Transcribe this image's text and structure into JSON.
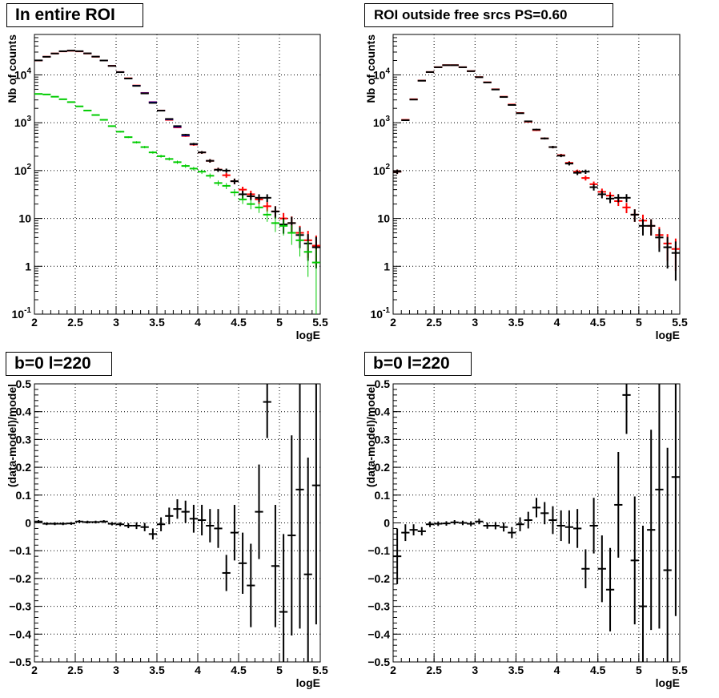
{
  "chart_data": [
    {
      "type": "scatter",
      "panel": "top-left",
      "title": "In entire ROI",
      "xlabel": "logE",
      "ylabel": "Nb of counts",
      "xlim": [
        2,
        5.5
      ],
      "ylim": [
        0.1,
        70000
      ],
      "yscale": "log",
      "grid": true,
      "x_ticks": [
        "2",
        "2.5",
        "3",
        "3.5",
        "4",
        "4.5",
        "5",
        "5.5"
      ],
      "y_ticks": [
        "10^-1",
        "1",
        "10",
        "10^2",
        "10^3",
        "10^4"
      ],
      "series": [
        {
          "color": "#ff0000",
          "x": [
            2.05,
            2.15,
            2.25,
            2.35,
            2.45,
            2.55,
            2.65,
            2.75,
            2.85,
            2.95,
            3.05,
            3.15,
            3.25,
            3.35,
            3.45,
            3.55,
            3.65,
            3.75,
            3.85,
            3.95,
            4.05,
            4.15,
            4.25,
            4.35,
            4.45,
            4.55,
            4.65,
            4.75,
            4.85,
            4.95,
            5.05,
            5.15,
            5.25,
            5.35,
            5.45
          ],
          "y": [
            20000,
            24000,
            28000,
            31000,
            32000,
            31000,
            28000,
            24000,
            20000,
            15500,
            11500,
            8500,
            6000,
            4200,
            2700,
            1800,
            1150,
            800,
            530,
            350,
            240,
            160,
            105,
            80,
            60,
            40,
            32,
            25,
            18,
            14,
            10,
            8,
            5,
            3.5,
            2.7
          ],
          "yerr": [
            140,
            155,
            167,
            176,
            179,
            176,
            167,
            155,
            141,
            124,
            107,
            92,
            77,
            65,
            52,
            42,
            34,
            28,
            23,
            19,
            15,
            13,
            10,
            9,
            8,
            6,
            6,
            5,
            4,
            4,
            3,
            3,
            2,
            2,
            1.7
          ]
        },
        {
          "color": "#0000ff",
          "x": [
            2.05,
            2.15,
            2.25,
            2.35,
            2.45,
            2.55,
            2.65,
            2.75,
            2.85,
            2.95,
            3.05,
            3.15,
            3.25,
            3.35,
            3.45,
            3.55,
            3.65,
            3.75,
            3.85,
            3.95,
            4.05,
            4.15
          ],
          "y": [
            20100,
            24100,
            28100,
            31100,
            32100,
            31100,
            28100,
            24100,
            20100,
            15600,
            11600,
            8550,
            6050,
            4230,
            2720,
            1810,
            1160,
            810,
            535,
            352,
            242,
            161
          ]
        },
        {
          "color": "#000000",
          "x": [
            2.05,
            2.15,
            2.25,
            2.35,
            2.45,
            2.55,
            2.65,
            2.75,
            2.85,
            2.95,
            3.05,
            3.15,
            3.25,
            3.35,
            3.45,
            3.55,
            3.65,
            3.75,
            3.85,
            3.95,
            4.05,
            4.15,
            4.25,
            4.35,
            4.45,
            4.55,
            4.65,
            4.75,
            4.85,
            4.95,
            5.05,
            5.15,
            5.25,
            5.35,
            5.45
          ],
          "y": [
            20100,
            23900,
            28000,
            31200,
            32200,
            31300,
            28200,
            24100,
            20000,
            15400,
            11400,
            8400,
            5900,
            4100,
            2600,
            1790,
            1200,
            850,
            560,
            360,
            240,
            160,
            104,
            100,
            60,
            32,
            29,
            27,
            27,
            14,
            7.5,
            8,
            4.5,
            3,
            2.5
          ],
          "yerr": [
            142,
            155,
            167,
            177,
            179,
            177,
            168,
            155,
            141,
            124,
            107,
            92,
            77,
            64,
            51,
            42,
            35,
            29,
            24,
            19,
            15,
            13,
            10,
            10,
            8,
            6,
            5,
            5,
            5,
            4,
            2.7,
            2.8,
            2.1,
            1.7,
            1.6
          ]
        },
        {
          "color": "#00cc00",
          "x": [
            2.05,
            2.15,
            2.25,
            2.35,
            2.45,
            2.55,
            2.65,
            2.75,
            2.85,
            2.95,
            3.05,
            3.15,
            3.25,
            3.35,
            3.45,
            3.55,
            3.65,
            3.75,
            3.85,
            3.95,
            4.05,
            4.15,
            4.25,
            4.35,
            4.45,
            4.55,
            4.65,
            4.75,
            4.85,
            4.95,
            5.05,
            5.15,
            5.25,
            5.35,
            5.45
          ],
          "y": [
            4000,
            3900,
            3500,
            3100,
            2700,
            2200,
            1800,
            1450,
            1150,
            850,
            650,
            500,
            390,
            310,
            240,
            200,
            175,
            150,
            125,
            110,
            95,
            78,
            55,
            48,
            35,
            25,
            20,
            17,
            12,
            8,
            7,
            5,
            3.5,
            2,
            1.2
          ],
          "yerr": [
            63,
            62,
            59,
            56,
            52,
            47,
            42,
            38,
            34,
            29,
            25,
            22,
            20,
            18,
            15,
            14,
            13,
            12,
            11,
            10,
            10,
            9,
            7,
            7,
            6,
            5,
            4.5,
            4,
            3.5,
            2.8,
            2.6,
            2.2,
            1.9,
            1.4,
            1.1
          ]
        }
      ]
    },
    {
      "type": "scatter",
      "panel": "top-right",
      "title": "ROI outside free srcs PS=0.60",
      "xlabel": "logE",
      "ylabel": "Nb of counts",
      "xlim": [
        2,
        5.5
      ],
      "ylim": [
        0.1,
        70000
      ],
      "yscale": "log",
      "grid": true,
      "x_ticks": [
        "2",
        "2.5",
        "3",
        "3.5",
        "4",
        "4.5",
        "5",
        "5.5"
      ],
      "y_ticks": [
        "10^-1",
        "1",
        "10",
        "10^2",
        "10^3",
        "10^4"
      ],
      "series": [
        {
          "color": "#ff0000",
          "x": [
            2.05,
            2.15,
            2.25,
            2.35,
            2.45,
            2.55,
            2.65,
            2.75,
            2.85,
            2.95,
            3.05,
            3.15,
            3.25,
            3.35,
            3.45,
            3.55,
            3.65,
            3.75,
            3.85,
            3.95,
            4.05,
            4.15,
            4.25,
            4.35,
            4.45,
            4.55,
            4.65,
            4.75,
            4.85,
            4.95,
            5.05,
            5.15,
            5.25,
            5.35,
            5.45
          ],
          "y": [
            95,
            1150,
            3100,
            7600,
            11500,
            14500,
            16000,
            16000,
            14500,
            12000,
            9000,
            7000,
            5000,
            3500,
            2400,
            1600,
            1050,
            700,
            470,
            310,
            210,
            145,
            95,
            70,
            52,
            36,
            30,
            23,
            17,
            12,
            9,
            7,
            4.5,
            3,
            2.3
          ],
          "yerr": [
            10,
            34,
            56,
            87,
            107,
            120,
            126,
            126,
            120,
            110,
            95,
            84,
            71,
            59,
            49,
            40,
            32,
            26,
            22,
            18,
            14,
            12,
            10,
            8,
            7,
            6,
            5.5,
            4.8,
            4.1,
            3.5,
            3,
            2.6,
            2.1,
            1.7,
            1.5
          ]
        },
        {
          "color": "#000000",
          "x": [
            2.05,
            2.15,
            2.25,
            2.35,
            2.45,
            2.55,
            2.65,
            2.75,
            2.85,
            2.95,
            3.05,
            3.15,
            3.25,
            3.35,
            3.45,
            3.55,
            3.65,
            3.75,
            3.85,
            3.95,
            4.05,
            4.15,
            4.25,
            4.35,
            4.45,
            4.55,
            4.65,
            4.75,
            4.85,
            4.95,
            5.05,
            5.15,
            5.25,
            5.35,
            5.45
          ],
          "y": [
            95,
            1130,
            3050,
            7550,
            11450,
            14450,
            15950,
            15950,
            14450,
            11950,
            8950,
            6950,
            4950,
            3450,
            2350,
            1580,
            1070,
            720,
            470,
            310,
            205,
            140,
            90,
            95,
            45,
            32,
            26,
            27,
            27,
            12,
            7,
            7,
            4,
            2.5,
            1.9
          ],
          "yerr": [
            10,
            34,
            55,
            87,
            107,
            120,
            126,
            126,
            120,
            109,
            95,
            83,
            70,
            59,
            48,
            40,
            33,
            27,
            22,
            18,
            14,
            12,
            9.5,
            9.7,
            6.7,
            5.7,
            5.1,
            5.2,
            5.2,
            3.5,
            2.6,
            2.6,
            2,
            1.6,
            1.4
          ]
        }
      ]
    },
    {
      "type": "scatter",
      "panel": "bottom-left",
      "title": "b=0 l=220",
      "xlabel": "logE",
      "ylabel": "(data-model)/model",
      "xlim": [
        2,
        5.5
      ],
      "ylim": [
        -0.5,
        0.5
      ],
      "grid": true,
      "x_ticks": [
        "2",
        "2.5",
        "3",
        "3.5",
        "4",
        "4.5",
        "5",
        "5.5"
      ],
      "y_ticks": [
        "-0.5",
        "-0.4",
        "-0.3",
        "-0.2",
        "-0.1",
        "0",
        "0.1",
        "0.2",
        "0.3",
        "0.4",
        "0.5"
      ],
      "series": [
        {
          "color": "#000000",
          "x": [
            2.05,
            2.15,
            2.25,
            2.35,
            2.45,
            2.55,
            2.65,
            2.75,
            2.85,
            2.95,
            3.05,
            3.15,
            3.25,
            3.35,
            3.45,
            3.55,
            3.65,
            3.75,
            3.85,
            3.95,
            4.05,
            4.15,
            4.25,
            4.35,
            4.45,
            4.55,
            4.65,
            4.75,
            4.85,
            4.95,
            5.05,
            5.15,
            5.25,
            5.35,
            5.45
          ],
          "y": [
            0.005,
            -0.003,
            -0.003,
            -0.003,
            -0.002,
            0.005,
            0.003,
            0.003,
            0.005,
            -0.003,
            -0.005,
            -0.01,
            -0.01,
            -0.015,
            -0.04,
            -0.005,
            0.025,
            0.05,
            0.04,
            0.015,
            0.01,
            -0.01,
            -0.02,
            -0.18,
            -0.035,
            -0.145,
            -0.225,
            0.04,
            0.435,
            -0.155,
            -0.32,
            -0.045,
            0.12,
            -0.185,
            0.135
          ],
          "yerr": [
            0.005,
            0.005,
            0.005,
            0.005,
            0.005,
            0.005,
            0.005,
            0.005,
            0.005,
            0.006,
            0.007,
            0.009,
            0.012,
            0.015,
            0.02,
            0.025,
            0.03,
            0.035,
            0.04,
            0.05,
            0.055,
            0.06,
            0.07,
            0.065,
            0.1,
            0.11,
            0.15,
            0.17,
            0.13,
            0.22,
            0.28,
            0.36,
            0.5,
            0.42,
            0.5
          ]
        }
      ]
    },
    {
      "type": "scatter",
      "panel": "bottom-right",
      "title": "b=0 l=220",
      "xlabel": "logE",
      "ylabel": "(data-model)/model",
      "xlim": [
        2,
        5.5
      ],
      "ylim": [
        -0.5,
        0.5
      ],
      "grid": true,
      "x_ticks": [
        "2",
        "2.5",
        "3",
        "3.5",
        "4",
        "4.5",
        "5",
        "5.5"
      ],
      "y_ticks": [
        "-0.5",
        "-0.4",
        "-0.3",
        "-0.2",
        "-0.1",
        "0",
        "0.1",
        "0.2",
        "0.3",
        "0.4",
        "0.5"
      ],
      "series": [
        {
          "color": "#000000",
          "x": [
            2.05,
            2.15,
            2.25,
            2.35,
            2.45,
            2.55,
            2.65,
            2.75,
            2.85,
            2.95,
            3.05,
            3.15,
            3.25,
            3.35,
            3.45,
            3.55,
            3.65,
            3.75,
            3.85,
            3.95,
            4.05,
            4.15,
            4.25,
            4.35,
            4.45,
            4.55,
            4.65,
            4.75,
            4.85,
            4.95,
            5.05,
            5.15,
            5.25,
            5.35,
            5.45
          ],
          "y": [
            -0.12,
            -0.035,
            -0.025,
            -0.03,
            -0.005,
            -0.003,
            -0.002,
            0.002,
            0.0,
            -0.003,
            0.005,
            -0.01,
            -0.01,
            -0.015,
            -0.035,
            -0.005,
            0.01,
            0.055,
            0.035,
            0.01,
            -0.01,
            -0.015,
            -0.02,
            -0.165,
            -0.01,
            -0.165,
            -0.24,
            0.065,
            0.46,
            -0.135,
            -0.3,
            -0.025,
            0.12,
            -0.17,
            0.165
          ],
          "yerr": [
            0.1,
            0.03,
            0.02,
            0.015,
            0.01,
            0.008,
            0.008,
            0.008,
            0.008,
            0.009,
            0.01,
            0.011,
            0.013,
            0.016,
            0.02,
            0.025,
            0.03,
            0.035,
            0.04,
            0.05,
            0.055,
            0.06,
            0.07,
            0.07,
            0.1,
            0.12,
            0.15,
            0.19,
            0.14,
            0.23,
            0.29,
            0.36,
            0.5,
            0.44,
            0.5
          ]
        }
      ]
    }
  ]
}
